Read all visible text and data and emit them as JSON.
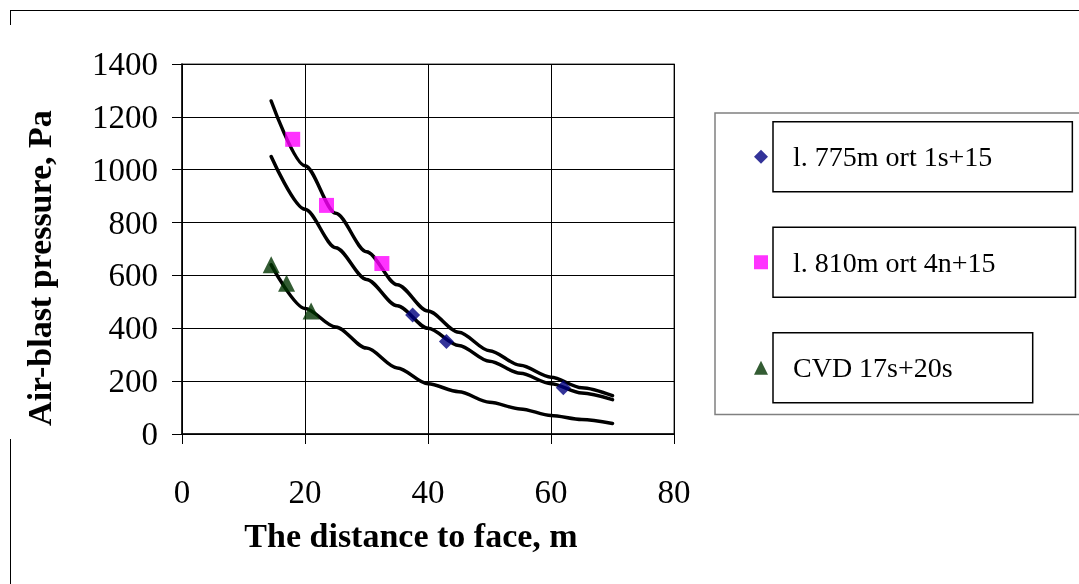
{
  "chart_data": {
    "type": "scatter",
    "xlabel": "The distance to face, m",
    "ylabel": "Air-blast pressure, Pa",
    "xlim": [
      0,
      80
    ],
    "xticks": [
      0,
      20,
      40,
      60,
      80
    ],
    "ylim": [
      0,
      1400
    ],
    "yticks": [
      0,
      200,
      400,
      600,
      800,
      1000,
      1200,
      1400
    ],
    "grid": true,
    "legend": "right",
    "series": [
      {
        "name": "l. 775m ort 1s+15",
        "color": "#000080",
        "marker": "diamond",
        "x": [
          37.5,
          43,
          62
        ],
        "values": [
          450,
          350,
          175
        ]
      },
      {
        "name": "l. 810m ort 4n+15",
        "color": "#ff00ff",
        "marker": "square",
        "x": [
          18,
          23.5,
          32.5
        ],
        "values": [
          1115,
          865,
          645
        ]
      },
      {
        "name": "CVD 17s+20s",
        "color": "#003300",
        "marker": "triangle",
        "x": [
          14.5,
          17,
          21
        ],
        "values": [
          640,
          570,
          465
        ]
      },
      {
        "type": "line",
        "color": "#000000",
        "marker": "none",
        "x": [
          14.5,
          20,
          25,
          30,
          35,
          40,
          45,
          50,
          55,
          60,
          65,
          70
        ],
        "values": [
          1260,
          1015,
          835,
          690,
          565,
          465,
          385,
          315,
          260,
          215,
          175,
          145
        ]
      },
      {
        "type": "line",
        "color": "#000000",
        "marker": "none",
        "x": [
          14.5,
          20,
          25,
          30,
          35,
          40,
          45,
          50,
          55,
          60,
          65,
          70
        ],
        "values": [
          1050,
          850,
          705,
          585,
          485,
          400,
          335,
          275,
          230,
          190,
          155,
          130
        ]
      },
      {
        "type": "line",
        "color": "#000000",
        "marker": "none",
        "x": [
          14.5,
          20,
          25,
          30,
          35,
          40,
          45,
          50,
          55,
          60,
          65,
          70
        ],
        "values": [
          640,
          475,
          405,
          325,
          250,
          190,
          160,
          120,
          95,
          70,
          55,
          40
        ]
      }
    ]
  }
}
